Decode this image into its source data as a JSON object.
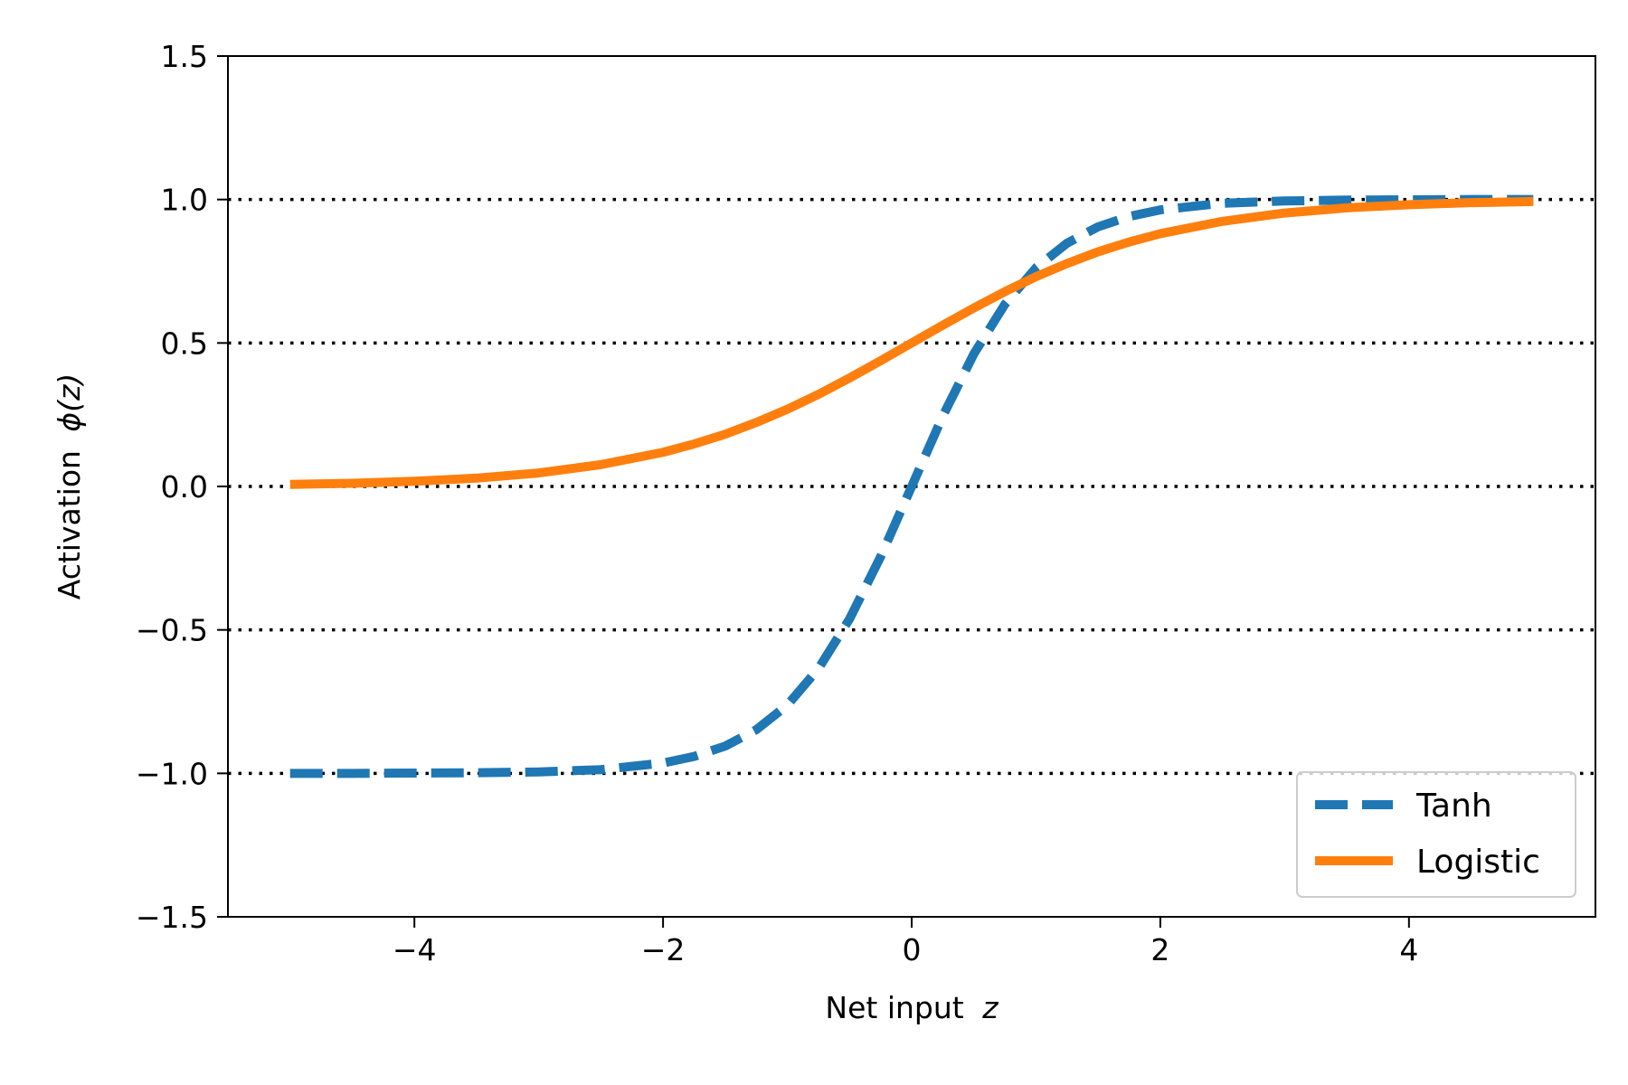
{
  "chart_data": {
    "type": "line",
    "xlabel": "Net input",
    "xlabel_var": "z",
    "ylabel": "Activation",
    "ylabel_func": "ϕ(z)",
    "xlim": [
      -5.5,
      5.5
    ],
    "ylim": [
      -1.5,
      1.5
    ],
    "xticks": [
      -4,
      -2,
      0,
      2,
      4
    ],
    "xtick_labels": [
      "−4",
      "−2",
      "0",
      "2",
      "4"
    ],
    "yticks": [
      -1.5,
      -1.0,
      -0.5,
      0.0,
      0.5,
      1.0,
      1.5
    ],
    "ytick_labels": [
      "−1.5",
      "−1.0",
      "−0.5",
      "0.0",
      "0.5",
      "1.0",
      "1.5"
    ],
    "reference_lines_y": [
      -1.0,
      -0.5,
      0.0,
      0.5,
      1.0
    ],
    "legend_placement": "lower-right",
    "x": [
      -5.0,
      -4.5,
      -4.0,
      -3.5,
      -3.0,
      -2.5,
      -2.0,
      -1.75,
      -1.5,
      -1.25,
      -1.0,
      -0.75,
      -0.5,
      -0.25,
      0.0,
      0.25,
      0.5,
      0.75,
      1.0,
      1.25,
      1.5,
      1.75,
      2.0,
      2.5,
      3.0,
      3.5,
      4.0,
      4.5,
      5.0
    ],
    "series": [
      {
        "name": "Tanh",
        "color": "#1f77b4",
        "style": "dashed",
        "values": [
          -1.0,
          -1.0,
          -0.999,
          -0.998,
          -0.995,
          -0.987,
          -0.964,
          -0.941,
          -0.905,
          -0.848,
          -0.762,
          -0.635,
          -0.462,
          -0.245,
          0.0,
          0.245,
          0.462,
          0.635,
          0.762,
          0.848,
          0.905,
          0.941,
          0.964,
          0.987,
          0.995,
          0.998,
          0.999,
          1.0,
          1.0
        ]
      },
      {
        "name": "Logistic",
        "color": "#ff7f0e",
        "style": "solid",
        "values": [
          0.007,
          0.011,
          0.018,
          0.029,
          0.047,
          0.076,
          0.119,
          0.148,
          0.182,
          0.223,
          0.269,
          0.321,
          0.378,
          0.438,
          0.5,
          0.562,
          0.622,
          0.679,
          0.731,
          0.777,
          0.818,
          0.852,
          0.881,
          0.924,
          0.953,
          0.971,
          0.982,
          0.989,
          0.993
        ]
      }
    ]
  }
}
